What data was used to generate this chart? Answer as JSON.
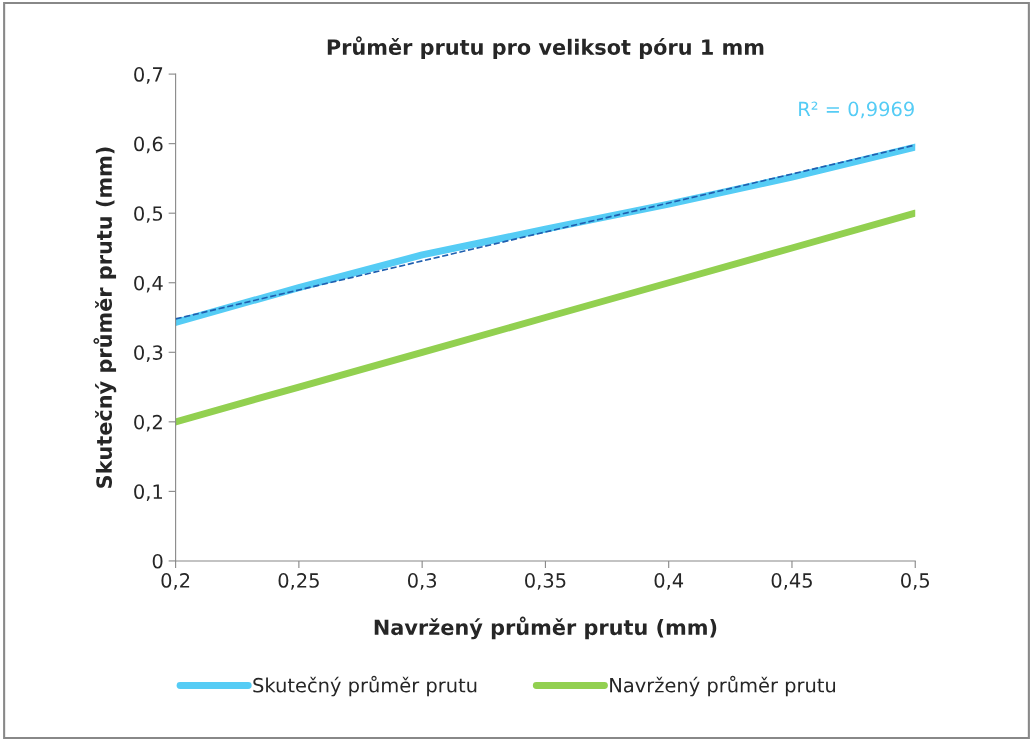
{
  "chart_data": {
    "type": "line",
    "title": "Průměr prutu pro veliksot póru 1 mm",
    "xlabel": "Navržený průměr prutu (mm)",
    "ylabel": "Skutečný průměr prutu (mm)",
    "x": [
      0.2,
      0.25,
      0.3,
      0.35,
      0.4,
      0.45,
      0.5
    ],
    "series": [
      {
        "name": "Skutečný průměr prutu",
        "color": "#55ccf5",
        "values": [
          0.343,
          0.393,
          0.44,
          0.477,
          0.513,
          0.552,
          0.595
        ]
      },
      {
        "name": "Navržený průměr prutu",
        "color": "#92d050",
        "values": [
          0.2,
          0.25,
          0.3,
          0.35,
          0.4,
          0.45,
          0.5
        ]
      },
      {
        "type": "line",
        "color": "#1f5fb0",
        "line_style": "dashed",
        "x": [
          0.2,
          0.5
        ],
        "values": [
          0.348,
          0.598
        ]
      }
    ],
    "annotations": [
      {
        "text": "R² = 0,9969",
        "x": 0.5,
        "y": 0.598
      }
    ],
    "xlim": [
      0.2,
      0.5
    ],
    "ylim": [
      0,
      0.7
    ],
    "xticks": [
      {
        "value": 0.2,
        "label": "0,2"
      },
      {
        "value": 0.25,
        "label": "0,25"
      },
      {
        "value": 0.3,
        "label": "0,3"
      },
      {
        "value": 0.35,
        "label": "0,35"
      },
      {
        "value": 0.4,
        "label": "0,4"
      },
      {
        "value": 0.45,
        "label": "0,45"
      },
      {
        "value": 0.5,
        "label": "0,5"
      }
    ],
    "yticks": [
      0,
      {
        "value": 0.1,
        "label": "0,1"
      },
      {
        "value": 0.2,
        "label": "0,2"
      },
      {
        "value": 0.3,
        "label": "0,3"
      },
      {
        "value": 0.4,
        "label": "0,4"
      },
      {
        "value": 0.5,
        "label": "0,5"
      },
      {
        "value": 0.6,
        "label": "0,6"
      },
      {
        "value": 0.7,
        "label": "0,7"
      }
    ],
    "grid": false,
    "legend": "bottom",
    "marker": "none"
  }
}
